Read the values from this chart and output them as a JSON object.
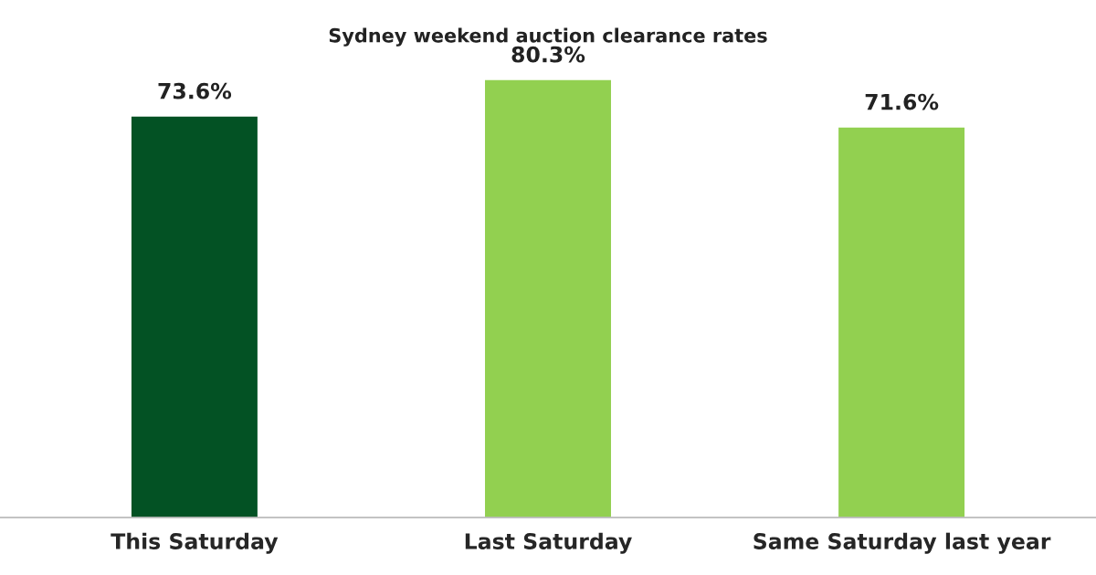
{
  "chart_data": {
    "type": "bar",
    "title": "Sydney weekend auction clearance rates",
    "categories": [
      "This Saturday",
      "Last Saturday",
      "Same Saturday last year"
    ],
    "values": [
      73.6,
      80.3,
      71.6
    ],
    "colors": [
      "#035224",
      "#92d050",
      "#92d050"
    ],
    "value_labels": [
      "73.6%",
      "80.3%",
      "71.6%"
    ],
    "tick_labels": "x",
    "grid": false
  }
}
